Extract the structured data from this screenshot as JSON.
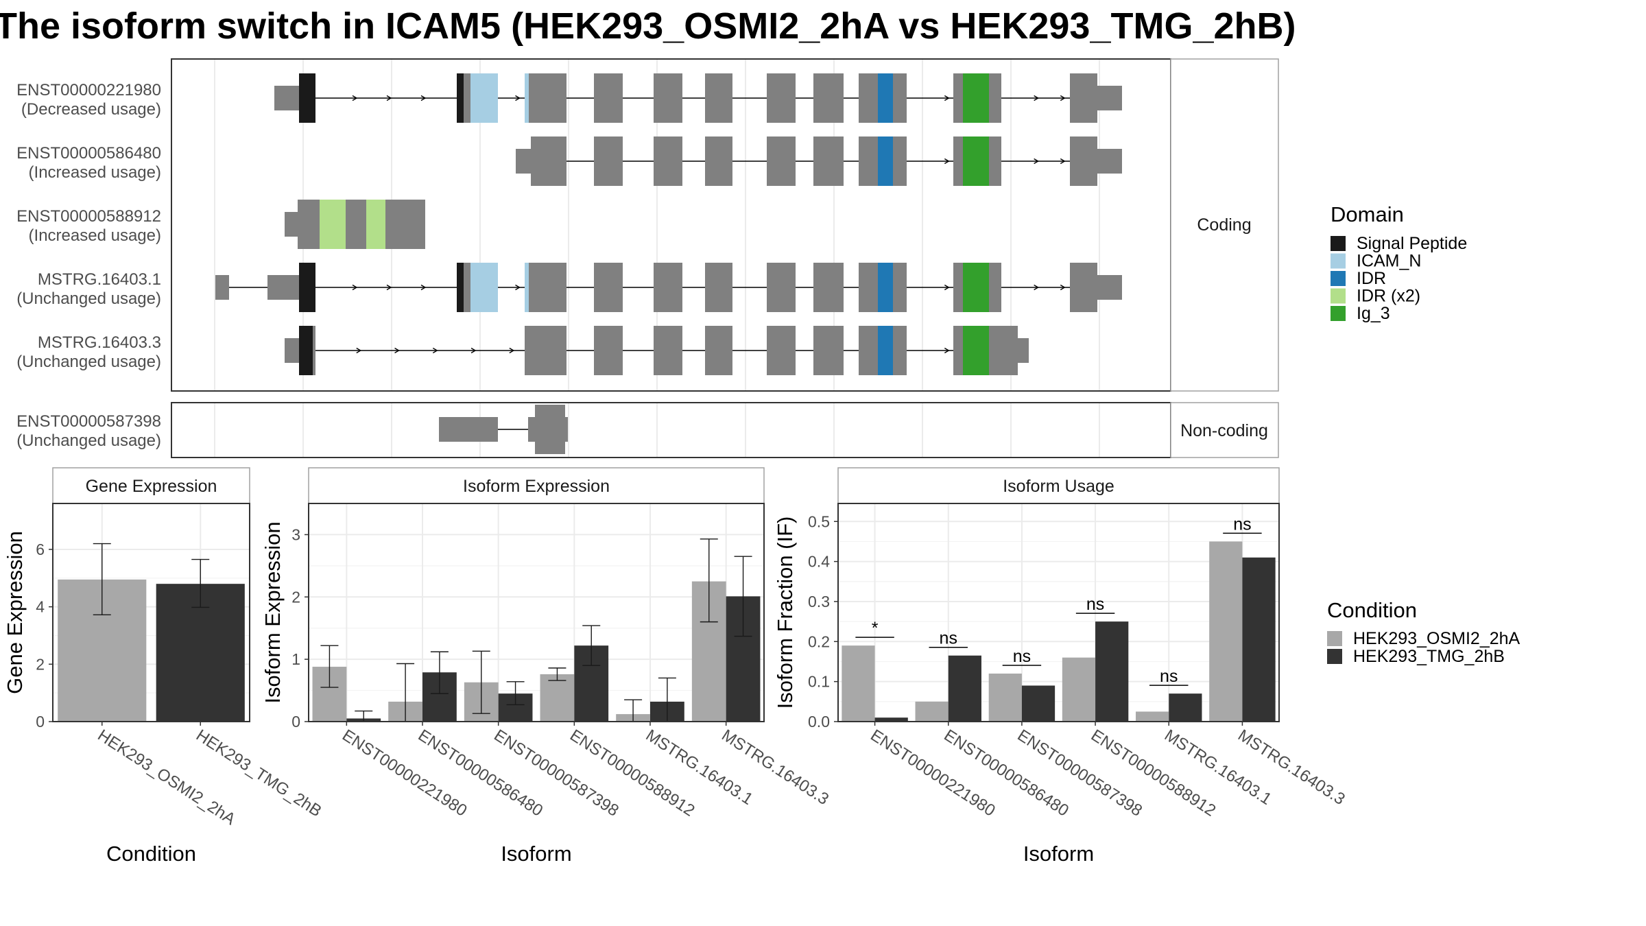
{
  "title": "The isoform switch in ICAM5 (HEK293_OSMI2_2hA vs HEK293_TMG_2hB)",
  "colors": {
    "exon": "#808080",
    "cond_a": "#a8a8a8",
    "cond_b": "#333333",
    "grid": "#ebebeb",
    "panel_border": "#333333",
    "strip_border": "#a0a0a0"
  },
  "domain_legend": {
    "title": "Domain",
    "items": [
      {
        "name": "Signal Peptide",
        "color": "#1a1a1a"
      },
      {
        "name": "ICAM_N",
        "color": "#a6cee3"
      },
      {
        "name": "IDR",
        "color": "#1f78b4"
      },
      {
        "name": "IDR (x2)",
        "color": "#b2df8a"
      },
      {
        "name": "Ig_3",
        "color": "#33a02c"
      }
    ]
  },
  "condition_legend": {
    "title": "Condition",
    "items": [
      {
        "name": "HEK293_OSMI2_2hA",
        "color": "#a8a8a8"
      },
      {
        "name": "HEK293_TMG_2hB",
        "color": "#333333"
      }
    ]
  },
  "structure": {
    "coding_label": "Coding",
    "noncoding_label": "Non-coding",
    "transcripts": [
      {
        "id": "ENST00000221980",
        "usage": "(Decreased usage)",
        "group": "coding"
      },
      {
        "id": "ENST00000586480",
        "usage": "(Increased usage)",
        "group": "coding"
      },
      {
        "id": "ENST00000588912",
        "usage": "(Increased usage)",
        "group": "coding"
      },
      {
        "id": "MSTRG.16403.1",
        "usage": "(Unchanged usage)",
        "group": "coding"
      },
      {
        "id": "MSTRG.16403.3",
        "usage": "(Unchanged usage)",
        "group": "coding"
      },
      {
        "id": "ENST00000587398",
        "usage": "(Unchanged usage)",
        "group": "noncoding"
      }
    ]
  },
  "chart_data": [
    {
      "type": "bar",
      "title": "Gene Expression",
      "xlabel": "Condition",
      "ylabel": "Gene Expression",
      "ylim": [
        0,
        7.6
      ],
      "yticks": [
        0,
        2,
        4,
        6
      ],
      "categories": [
        "HEK293_OSMI2_2hA",
        "HEK293_TMG_2hB"
      ],
      "values": [
        4.95,
        4.8
      ],
      "error_low": [
        3.72,
        3.98
      ],
      "error_high": [
        6.2,
        5.65
      ],
      "colors": [
        "#a8a8a8",
        "#333333"
      ]
    },
    {
      "type": "bar",
      "title": "Isoform Expression",
      "xlabel": "Isoform",
      "ylabel": "Isoform Expression",
      "ylim": [
        0,
        3.5
      ],
      "yticks": [
        0,
        1,
        2,
        3
      ],
      "categories": [
        "ENST00000221980",
        "ENST00000586480",
        "ENST00000587398",
        "ENST00000588912",
        "MSTRG.16403.1",
        "MSTRG.16403.3"
      ],
      "series": [
        {
          "name": "HEK293_OSMI2_2hA",
          "values": [
            0.88,
            0.32,
            0.63,
            0.76,
            0.12,
            2.25
          ],
          "error_low": [
            0.55,
            0.0,
            0.13,
            0.66,
            0.0,
            1.6
          ],
          "error_high": [
            1.22,
            0.93,
            1.13,
            0.86,
            0.35,
            2.93
          ]
        },
        {
          "name": "HEK293_TMG_2hB",
          "values": [
            0.05,
            0.79,
            0.45,
            1.22,
            0.32,
            2.01
          ],
          "error_low": [
            0.0,
            0.45,
            0.27,
            0.9,
            0.0,
            1.37
          ],
          "error_high": [
            0.17,
            1.12,
            0.64,
            1.54,
            0.7,
            2.65
          ]
        }
      ]
    },
    {
      "type": "bar",
      "title": "Isoform Usage",
      "xlabel": "Isoform",
      "ylabel": "Isoform Fraction (IF)",
      "ylim": [
        0,
        0.545
      ],
      "yticks": [
        0.0,
        0.1,
        0.2,
        0.3,
        0.4,
        0.5
      ],
      "categories": [
        "ENST00000221980",
        "ENST00000586480",
        "ENST00000587398",
        "ENST00000588912",
        "MSTRG.16403.1",
        "MSTRG.16403.3"
      ],
      "series": [
        {
          "name": "HEK293_OSMI2_2hA",
          "values": [
            0.19,
            0.05,
            0.12,
            0.16,
            0.025,
            0.45
          ]
        },
        {
          "name": "HEK293_TMG_2hB",
          "values": [
            0.01,
            0.165,
            0.09,
            0.25,
            0.07,
            0.41
          ]
        }
      ],
      "significance": [
        "*",
        "ns",
        "ns",
        "ns",
        "ns",
        "ns"
      ]
    }
  ]
}
